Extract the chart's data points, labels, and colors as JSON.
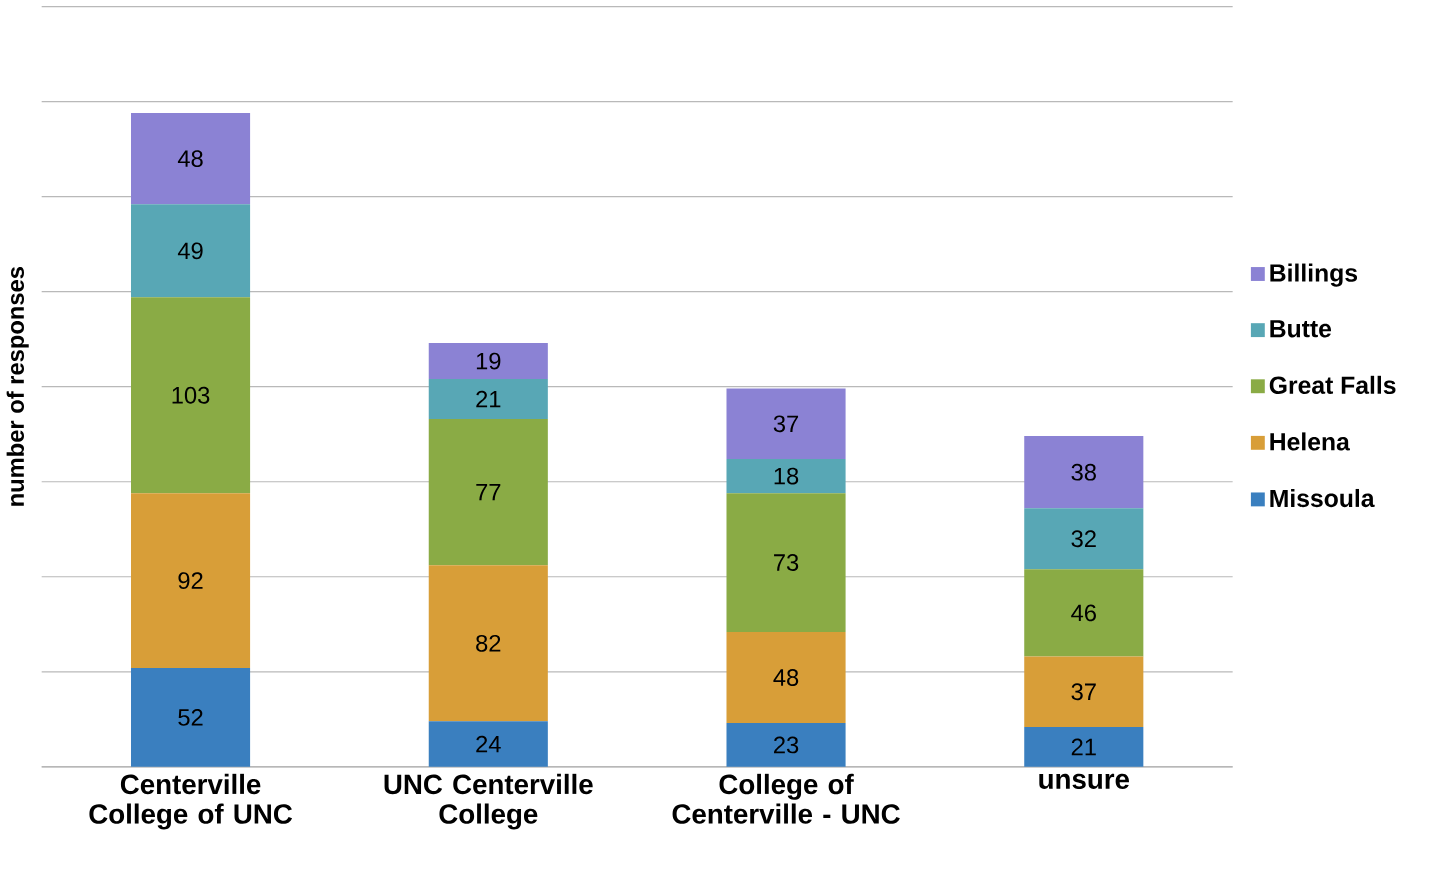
{
  "chart_data": {
    "type": "bar",
    "stacked": true,
    "ylabel": "number of responses",
    "categories": [
      "Centerville College of UNC",
      "UNC Centerville College",
      "College of Centerville - UNC",
      "unsure"
    ],
    "series": [
      {
        "name": "Missoula",
        "color": "#3a7fbf",
        "values": [
          52,
          24,
          23,
          21
        ]
      },
      {
        "name": "Helena",
        "color": "#d89e38",
        "values": [
          92,
          82,
          48,
          37
        ]
      },
      {
        "name": "Great Falls",
        "color": "#8aab45",
        "values": [
          103,
          77,
          73,
          46
        ]
      },
      {
        "name": "Butte",
        "color": "#58a7b5",
        "values": [
          49,
          21,
          18,
          32
        ]
      },
      {
        "name": "Billings",
        "color": "#8b82d4",
        "values": [
          48,
          19,
          37,
          38
        ]
      }
    ],
    "ylim": [
      0,
      400
    ],
    "yticks": [
      {
        "value": 0,
        "label": null
      },
      {
        "value": 50,
        "label": null
      },
      {
        "value": 100,
        "label": null
      },
      {
        "value": 150,
        "label": null
      },
      {
        "value": 200,
        "label": null
      },
      {
        "value": 250,
        "label": null
      },
      {
        "value": 300,
        "label": null
      },
      {
        "value": 350,
        "label": null
      },
      {
        "value": 400,
        "label": null
      }
    ],
    "grid": "y",
    "legend": "right",
    "tick_labels": "x",
    "data_labels": true
  }
}
